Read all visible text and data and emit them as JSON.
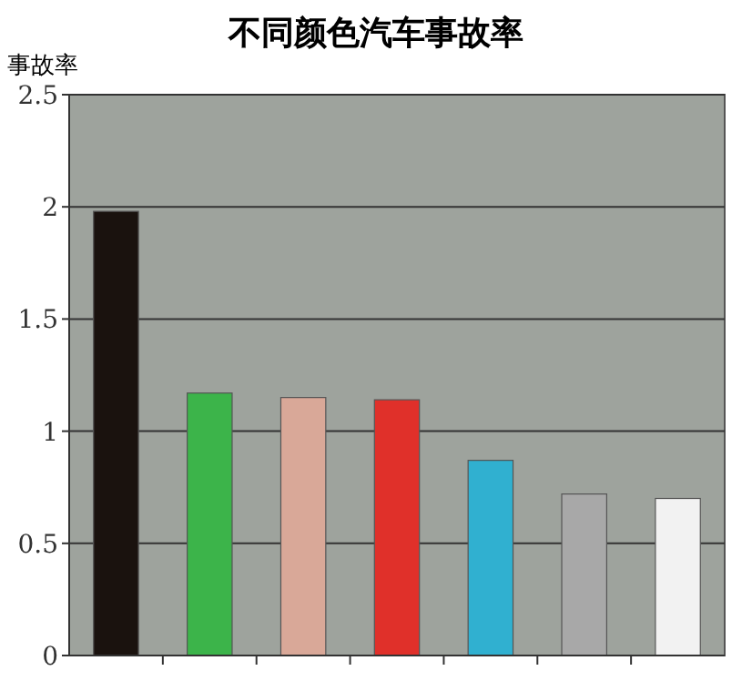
{
  "chart_data": {
    "type": "bar",
    "title": "不同颜色汽车事故率",
    "ylabel": "事故率",
    "categories": [
      null,
      null,
      null,
      null,
      null,
      null,
      null
    ],
    "values": [
      1.98,
      1.17,
      1.15,
      1.14,
      0.87,
      0.72,
      0.7
    ],
    "colors": [
      "#1a120e",
      "#3cb44a",
      "#d9a898",
      "#e0302a",
      "#30b0d0",
      "#a8a8a8",
      "#f2f2f2"
    ],
    "ylim": [
      0,
      2.5
    ],
    "yticks": [
      0,
      0.5,
      1,
      1.5,
      2,
      2.5
    ],
    "grid": "y"
  }
}
